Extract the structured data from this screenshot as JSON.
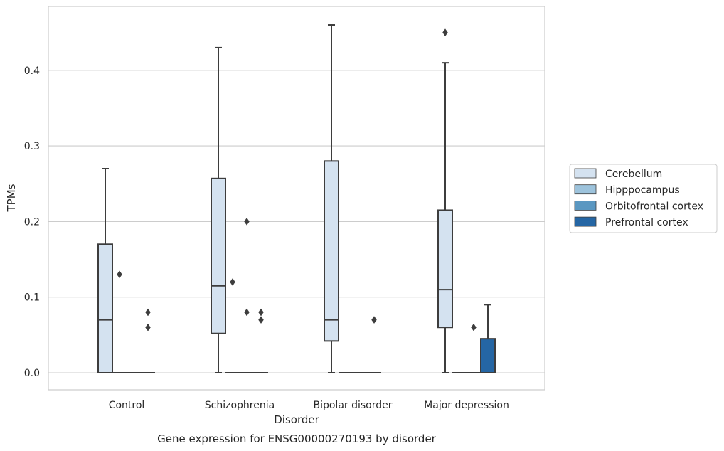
{
  "chart_data": {
    "type": "box",
    "title": "Gene expression for ENSG00000270193 by disorder",
    "xlabel": "Disorder",
    "ylabel": "TPMs",
    "ylim": [
      -0.022,
      0.484
    ],
    "yticks": [
      "0.0",
      "0.1",
      "0.2",
      "0.3",
      "0.4"
    ],
    "categories": [
      "Control",
      "Schizophrenia",
      "Bipolar disorder",
      "Major depression"
    ],
    "grid": "horizontal",
    "legend_position": "right",
    "series": [
      {
        "name": "Cerebellum",
        "color": "#d4e2f0",
        "boxes": [
          {
            "min": 0.0,
            "q1": 0.0,
            "median": 0.07,
            "q3": 0.17,
            "max": 0.27,
            "outliers": []
          },
          {
            "min": 0.0,
            "q1": 0.052,
            "median": 0.115,
            "q3": 0.257,
            "max": 0.43,
            "outliers": []
          },
          {
            "min": 0.0,
            "q1": 0.042,
            "median": 0.07,
            "q3": 0.28,
            "max": 0.46,
            "outliers": []
          },
          {
            "min": 0.0,
            "q1": 0.06,
            "median": 0.11,
            "q3": 0.215,
            "max": 0.41,
            "outliers": [
              0.45
            ]
          }
        ]
      },
      {
        "name": "Hipppocampus",
        "color": "#9dc3dc",
        "boxes": [
          {
            "min": 0.0,
            "q1": 0.0,
            "median": 0.0,
            "q3": 0.0,
            "max": 0.0,
            "outliers": [
              0.13
            ]
          },
          {
            "min": 0.0,
            "q1": 0.0,
            "median": 0.0,
            "q3": 0.0,
            "max": 0.0,
            "outliers": [
              0.12
            ]
          },
          {
            "min": 0.0,
            "q1": 0.0,
            "median": 0.0,
            "q3": 0.0,
            "max": 0.0,
            "outliers": []
          },
          {
            "min": 0.0,
            "q1": 0.0,
            "median": 0.0,
            "q3": 0.0,
            "max": 0.0,
            "outliers": []
          }
        ]
      },
      {
        "name": "Orbitofrontal cortex",
        "color": "#5a97c1",
        "boxes": [
          {
            "min": 0.0,
            "q1": 0.0,
            "median": 0.0,
            "q3": 0.0,
            "max": 0.0,
            "outliers": []
          },
          {
            "min": 0.0,
            "q1": 0.0,
            "median": 0.0,
            "q3": 0.0,
            "max": 0.0,
            "outliers": [
              0.2,
              0.08
            ]
          },
          {
            "min": 0.0,
            "q1": 0.0,
            "median": 0.0,
            "q3": 0.0,
            "max": 0.0,
            "outliers": []
          },
          {
            "min": 0.0,
            "q1": 0.0,
            "median": 0.0,
            "q3": 0.0,
            "max": 0.0,
            "outliers": [
              0.06
            ]
          }
        ]
      },
      {
        "name": "Prefrontal cortex",
        "color": "#2566a4",
        "boxes": [
          {
            "min": 0.0,
            "q1": 0.0,
            "median": 0.0,
            "q3": 0.0,
            "max": 0.0,
            "outliers": [
              0.08,
              0.06
            ]
          },
          {
            "min": 0.0,
            "q1": 0.0,
            "median": 0.0,
            "q3": 0.0,
            "max": 0.0,
            "outliers": [
              0.08,
              0.07
            ]
          },
          {
            "min": 0.0,
            "q1": 0.0,
            "median": 0.0,
            "q3": 0.0,
            "max": 0.0,
            "outliers": [
              0.07
            ]
          },
          {
            "min": 0.0,
            "q1": 0.0,
            "median": 0.0,
            "q3": 0.045,
            "max": 0.09,
            "outliers": []
          }
        ]
      }
    ]
  }
}
